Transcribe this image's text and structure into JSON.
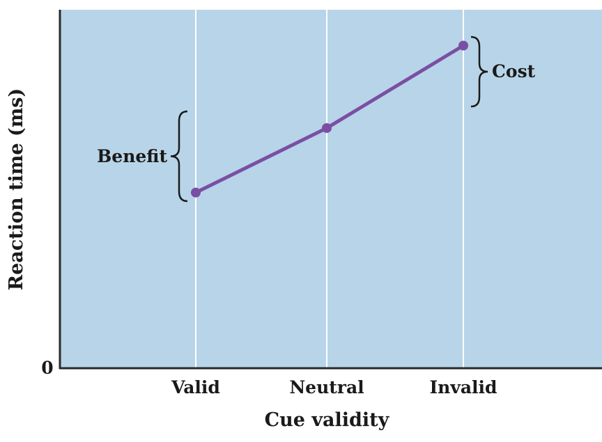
{
  "chart_data": {
    "type": "line",
    "title": "",
    "xlabel": "Cue validity",
    "ylabel": "Reaction time (ms)",
    "categories": [
      "Valid",
      "Neutral",
      "Invalid"
    ],
    "y_tick_labels": [
      "0"
    ],
    "ylim": [
      0,
      100
    ],
    "series": [
      {
        "values": [
          49,
          67,
          90
        ]
      }
    ],
    "annotations": {
      "benefit": "Benefit",
      "cost": "Cost"
    },
    "grid": "vertical gridlines at categories",
    "legend": "none",
    "colors": {
      "plot_background": "#b8d4e8",
      "gridline": "#ffffff",
      "series_line": "#7a4fa3",
      "axis": "#2a2a2a",
      "text": "#1a1a1a"
    }
  }
}
